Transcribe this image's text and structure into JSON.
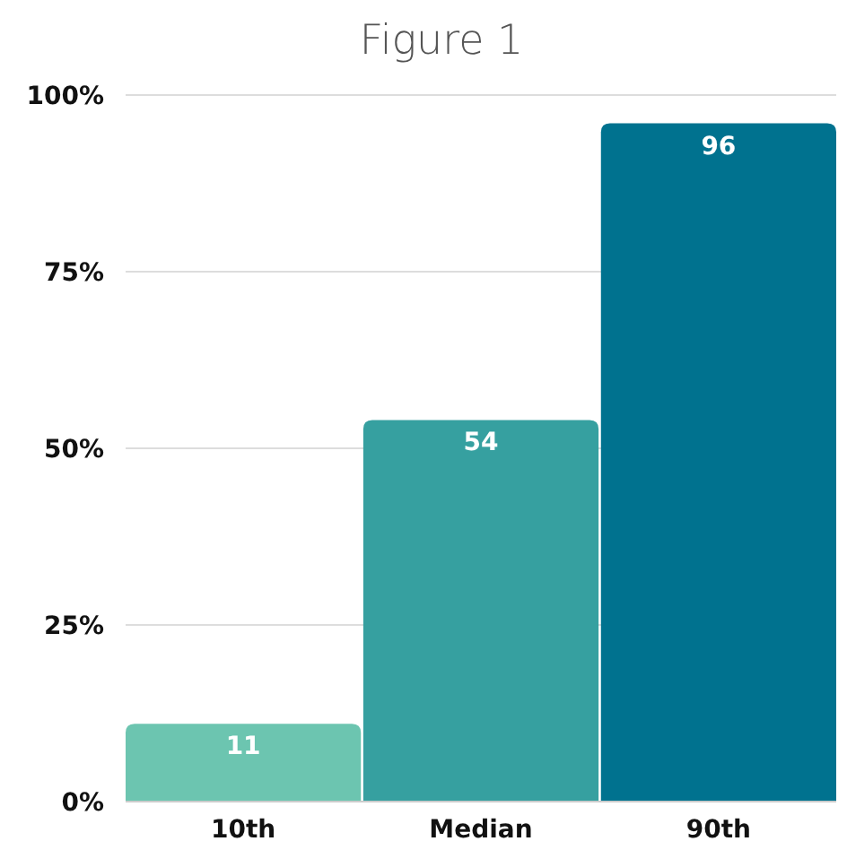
{
  "chart_data": {
    "type": "bar",
    "title": "Figure 1",
    "categories": [
      "10th",
      "Median",
      "90th"
    ],
    "values": [
      11,
      54,
      96
    ],
    "colors": [
      "#6cc5b0",
      "#36a0a0",
      "#00728f"
    ],
    "ylim": [
      0,
      100
    ],
    "yticks": [
      {
        "value": 0,
        "label": "0%"
      },
      {
        "value": 25,
        "label": "25%"
      },
      {
        "value": 50,
        "label": "50%"
      },
      {
        "value": 75,
        "label": "75%"
      },
      {
        "value": 100,
        "label": "100%"
      }
    ],
    "grid": "y",
    "data_labels": true
  }
}
